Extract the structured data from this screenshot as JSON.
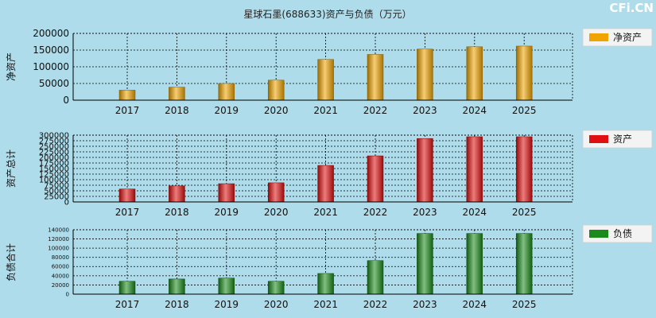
{
  "page": {
    "title": "星球石墨(688633)资产与负债（万元）",
    "watermark": "CFi.CN",
    "background": "#aedcea"
  },
  "chart_data": [
    {
      "type": "bar",
      "ylabel": "净资产",
      "legend": "净资产",
      "legend_placement": "right",
      "color": "#f0a400",
      "categories": [
        "2017",
        "2018",
        "2019",
        "2020",
        "2021",
        "2022",
        "2023",
        "2024",
        "2025"
      ],
      "values": [
        30000,
        39000,
        50000,
        60000,
        122000,
        137000,
        153000,
        160000,
        162000
      ],
      "ylim": [
        0,
        200000
      ],
      "yticks": [
        0,
        50000,
        100000,
        150000,
        200000
      ],
      "ytick_labels": [
        "0",
        "50000",
        "100000",
        "150000",
        "200000"
      ],
      "grid": true
    },
    {
      "type": "bar",
      "ylabel": "资产总计",
      "legend": "资产",
      "legend_placement": "right",
      "color": "#e01010",
      "categories": [
        "2017",
        "2018",
        "2019",
        "2020",
        "2021",
        "2022",
        "2023",
        "2024",
        "2025"
      ],
      "values": [
        58000,
        72000,
        82000,
        86000,
        164000,
        207000,
        285000,
        293000,
        293000
      ],
      "ylim": [
        0,
        300000
      ],
      "yticks": [
        0,
        25000,
        50000,
        75000,
        100000,
        125000,
        150000,
        175000,
        200000,
        225000,
        250000,
        275000,
        300000
      ],
      "ytick_labels": [
        "0",
        "25000",
        "50000",
        "75000",
        "100000",
        "125000",
        "150000",
        "175000",
        "200000",
        "225000",
        "250000",
        "275000",
        "300000"
      ],
      "grid": true
    },
    {
      "type": "bar",
      "ylabel": "负债合计",
      "legend": "负债",
      "legend_placement": "right",
      "color": "#1a8a1a",
      "categories": [
        "2017",
        "2018",
        "2019",
        "2020",
        "2021",
        "2022",
        "2023",
        "2024",
        "2025"
      ],
      "values": [
        28000,
        33000,
        35000,
        28000,
        45000,
        73000,
        132000,
        132000,
        132000
      ],
      "ylim": [
        0,
        140000
      ],
      "yticks": [
        0,
        20000,
        40000,
        60000,
        80000,
        100000,
        120000,
        140000
      ],
      "ytick_labels": [
        "0",
        "20000",
        "40000",
        "60000",
        "80000",
        "100000",
        "120000",
        "140000"
      ],
      "grid": true
    }
  ]
}
